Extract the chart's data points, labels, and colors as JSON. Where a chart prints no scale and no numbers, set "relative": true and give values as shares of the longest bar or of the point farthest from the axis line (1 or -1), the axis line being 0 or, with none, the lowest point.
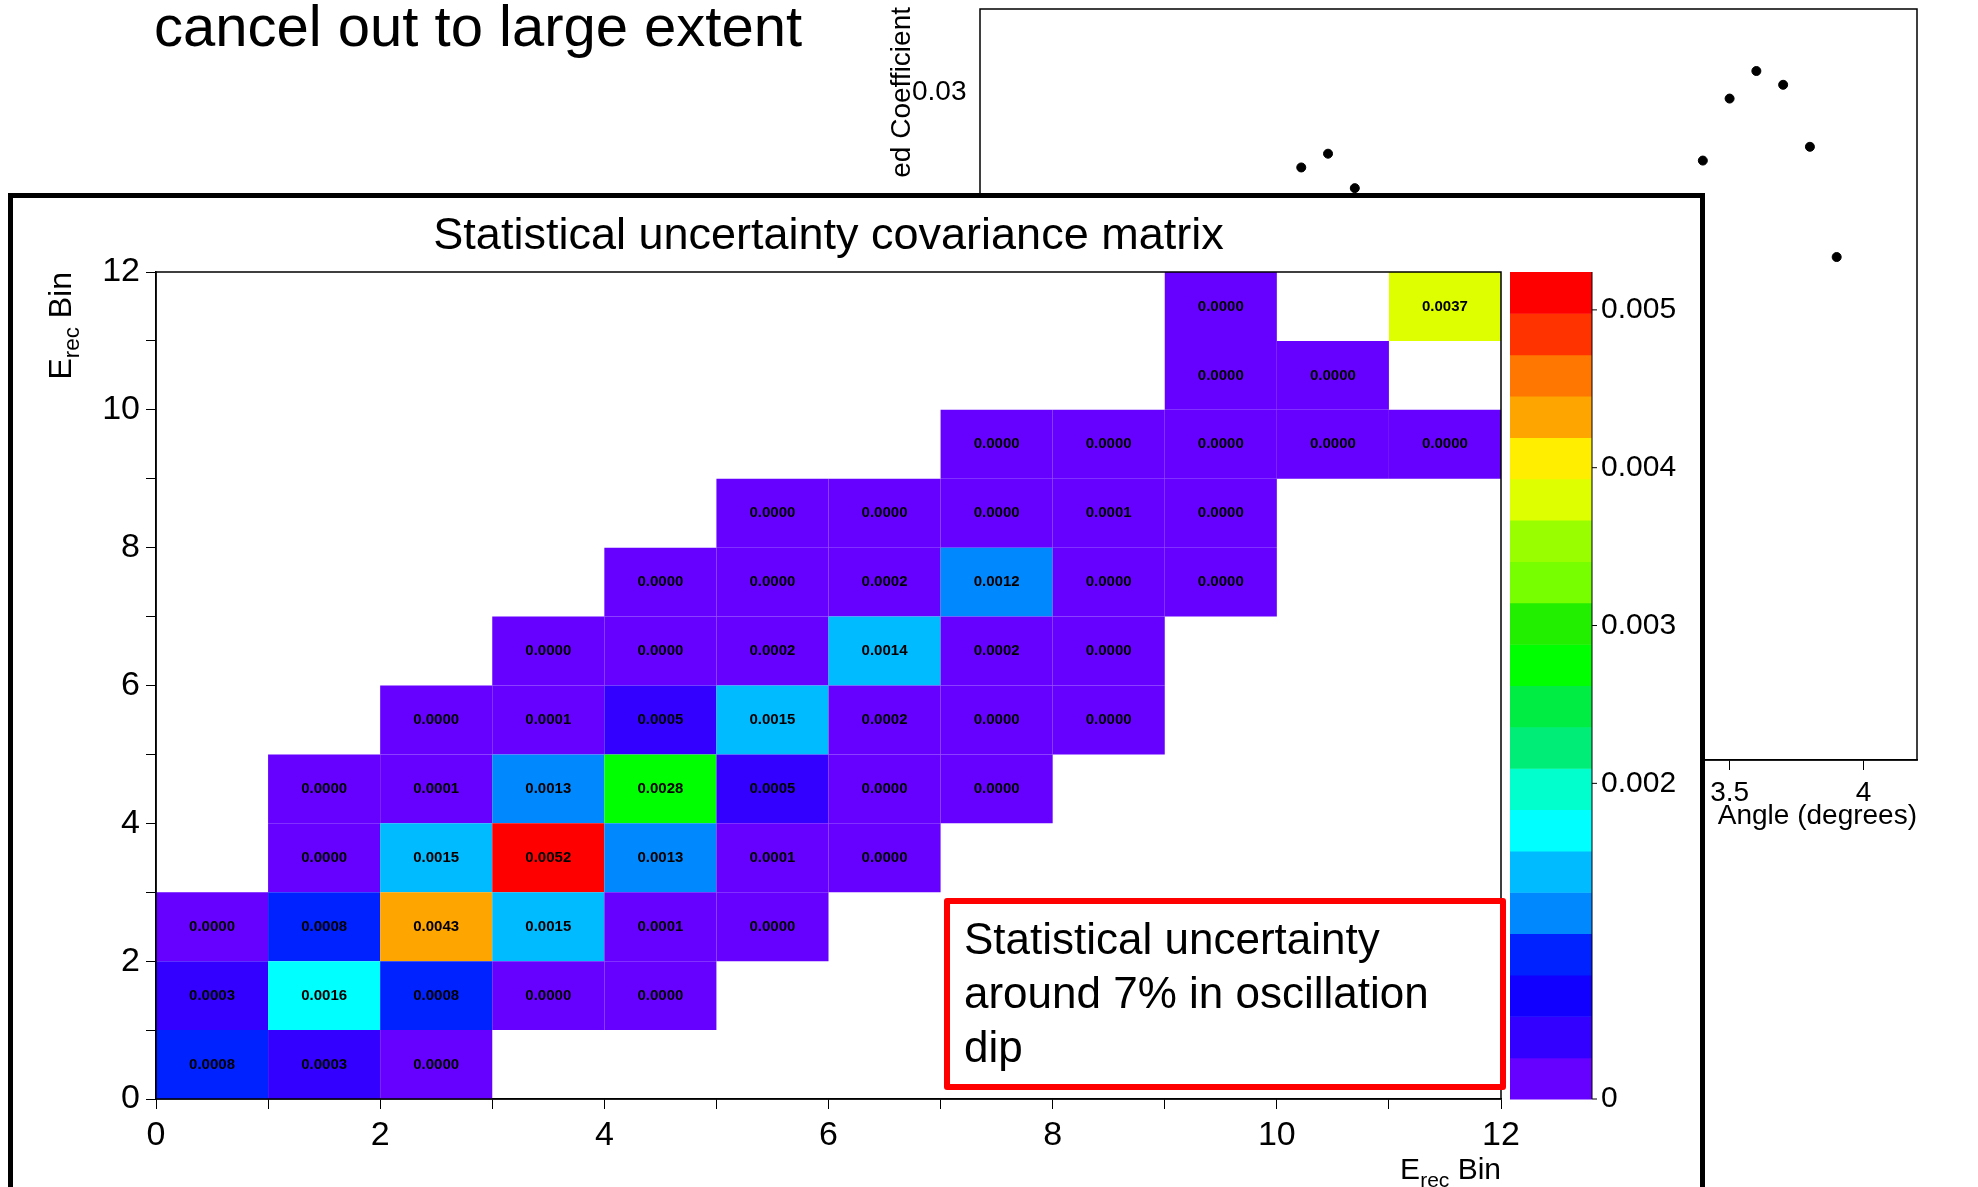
{
  "chart_data": [
    {
      "type": "scatter",
      "xlabel": "Angle (degrees)",
      "ylabel": "ed Coefficient",
      "xlim": [
        0.7,
        4.2
      ],
      "xticks": [
        3.5,
        4
      ],
      "relative": true,
      "marker": "circle",
      "legend": false,
      "grid": false,
      "series": [
        {
          "color": "#000000",
          "x": [
            1.9,
            2.0,
            2.1,
            3.4,
            3.5,
            3.6,
            3.7,
            3.8,
            3.9
          ],
          "values": [
            0.86,
            0.88,
            0.83,
            0.87,
            0.96,
            1,
            0.98,
            0.89,
            0.73
          ]
        }
      ],
      "annotations": [
        "cancel out to large extent",
        "0.03"
      ]
    },
    {
      "type": "heatmap",
      "title": "Statistical uncertainty covariance matrix",
      "xlabel": "E$_{rec}$ Bin",
      "ylabel": "E$_{rec}$ Bin",
      "xlim": [
        0,
        12
      ],
      "ylim": [
        0,
        12
      ],
      "xticks": [
        0,
        {
          "value": 1,
          "label": null
        },
        2,
        {
          "value": 3,
          "label": null
        },
        4,
        {
          "value": 5,
          "label": null
        },
        6,
        {
          "value": 7,
          "label": null
        },
        8,
        {
          "value": 9,
          "label": null
        },
        10,
        {
          "value": 11,
          "label": null
        },
        12
      ],
      "yticks": [
        0,
        {
          "value": 1,
          "label": null
        },
        2,
        {
          "value": 3,
          "label": null
        },
        4,
        {
          "value": 5,
          "label": null
        },
        6,
        {
          "value": 7,
          "label": null
        },
        8,
        {
          "value": 9,
          "label": null
        },
        10,
        {
          "value": 11,
          "label": null
        },
        12
      ],
      "clim": [
        0,
        0.00524
      ],
      "cticks": [
        0,
        0.002,
        0.003,
        0.004,
        0.005
      ],
      "cells": [
        [
          null,
          null,
          null,
          null,
          null,
          null,
          null,
          null,
          null,
          0,
          null,
          0.0037
        ],
        [
          null,
          null,
          null,
          null,
          null,
          null,
          null,
          null,
          null,
          0,
          0,
          null
        ],
        [
          null,
          null,
          null,
          null,
          null,
          null,
          null,
          0,
          0,
          0,
          0,
          0
        ],
        [
          null,
          null,
          null,
          null,
          null,
          0,
          0,
          0,
          0.0001,
          0,
          null,
          null
        ],
        [
          null,
          null,
          null,
          null,
          0,
          0,
          0.0002,
          0.0012,
          0,
          0,
          null,
          null
        ],
        [
          null,
          null,
          null,
          0,
          0,
          0.0002,
          0.0014,
          0.0002,
          0,
          null,
          null,
          null
        ],
        [
          null,
          null,
          0,
          0.0001,
          0.0005,
          0.0015,
          0.0002,
          0,
          0,
          null,
          null,
          null
        ],
        [
          null,
          0,
          0.0001,
          0.0013,
          0.0028,
          0.0005,
          0,
          0,
          null,
          null,
          null,
          null
        ],
        [
          null,
          0,
          0.0015,
          0.0052,
          0.0013,
          0.0001,
          0,
          null,
          null,
          null,
          null,
          null
        ],
        [
          0,
          0.0008,
          0.0043,
          0.0015,
          0.0001,
          0,
          null,
          null,
          null,
          null,
          null,
          null
        ],
        [
          0.0003,
          0.0016,
          0.0008,
          0,
          0,
          null,
          null,
          null,
          null,
          null,
          null,
          null
        ],
        [
          0.0008,
          0.0003,
          0,
          null,
          null,
          null,
          null,
          null,
          null,
          null,
          null,
          null
        ]
      ],
      "cell_labels": [
        [
          null,
          null,
          null,
          null,
          null,
          null,
          null,
          null,
          null,
          "0.0000",
          null,
          "0.0037"
        ],
        [
          null,
          null,
          null,
          null,
          null,
          null,
          null,
          null,
          null,
          "0.0000",
          "0.0000",
          null
        ],
        [
          null,
          null,
          null,
          null,
          null,
          null,
          null,
          "0.0000",
          "0.0000",
          "0.0000",
          "0.0000",
          "0.0000"
        ],
        [
          null,
          null,
          null,
          null,
          null,
          "0.0000",
          "0.0000",
          "0.0000",
          "0.0001",
          "0.0000",
          null,
          null
        ],
        [
          null,
          null,
          null,
          null,
          "0.0000",
          "0.0000",
          "0.0002",
          "0.0012",
          "0.0000",
          "0.0000",
          null,
          null
        ],
        [
          null,
          null,
          null,
          "0.0000",
          "0.0000",
          "0.0002",
          "0.0014",
          "0.0002",
          "0.0000",
          null,
          null,
          null
        ],
        [
          null,
          null,
          "0.0000",
          "0.0001",
          "0.0005",
          "0.0015",
          "0.0002",
          "0.0000",
          "0.0000",
          null,
          null,
          null
        ],
        [
          null,
          "0.0000",
          "0.0001",
          "0.0013",
          "0.0028",
          "0.0005",
          "0.0000",
          "0.0000",
          null,
          null,
          null,
          null
        ],
        [
          null,
          "0.0000",
          "0.0015",
          "0.0052",
          "0.0013",
          "0.0001",
          "0.0000",
          null,
          null,
          null,
          null,
          null
        ],
        [
          "0.0000",
          "0.0008",
          "0.0043",
          "0.0015",
          "0.0001",
          "0.0000",
          null,
          null,
          null,
          null,
          null,
          null
        ],
        [
          "0.0003",
          "0.0016",
          "0.0008",
          "0.0000",
          "0.0000",
          null,
          null,
          null,
          null,
          null,
          null,
          null
        ],
        [
          "0.0008",
          "0.0003",
          "0.0000",
          null,
          null,
          null,
          null,
          null,
          null,
          null,
          null,
          null
        ]
      ],
      "annotations": [
        "Statistical uncertainty around 7% in oscillation dip"
      ]
    }
  ]
}
